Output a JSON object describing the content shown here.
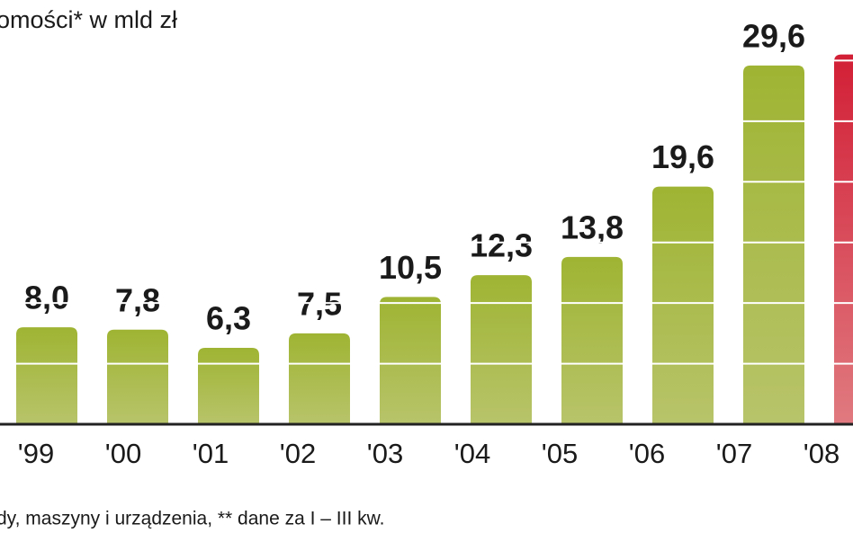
{
  "chart_data": {
    "type": "bar",
    "title": "omości* w mld zł",
    "footnote": "dy, maszyny i urządzenia, ** dane za I – III kw.",
    "categories": [
      "'99",
      "'00",
      "'01",
      "'02",
      "'03",
      "'04",
      "'05",
      "'06",
      "'07",
      "'08"
    ],
    "values": [
      8.0,
      7.8,
      6.3,
      7.5,
      10.5,
      12.3,
      13.8,
      19.6,
      29.6,
      30.5
    ],
    "value_labels": [
      "8,0",
      "7,8",
      "6,3",
      "7,5",
      "10,5",
      "12,3",
      "13,8",
      "19,6",
      "29,6",
      null
    ],
    "colors": [
      "#9bb034",
      "#9bb034",
      "#9bb034",
      "#9bb034",
      "#9bb034",
      "#9bb034",
      "#9bb034",
      "#9bb034",
      "#9bb034",
      "#d42a3e"
    ],
    "ylim": [
      0,
      35
    ],
    "yticks": [
      5,
      10,
      15,
      20,
      25,
      30
    ],
    "grid": true
  }
}
